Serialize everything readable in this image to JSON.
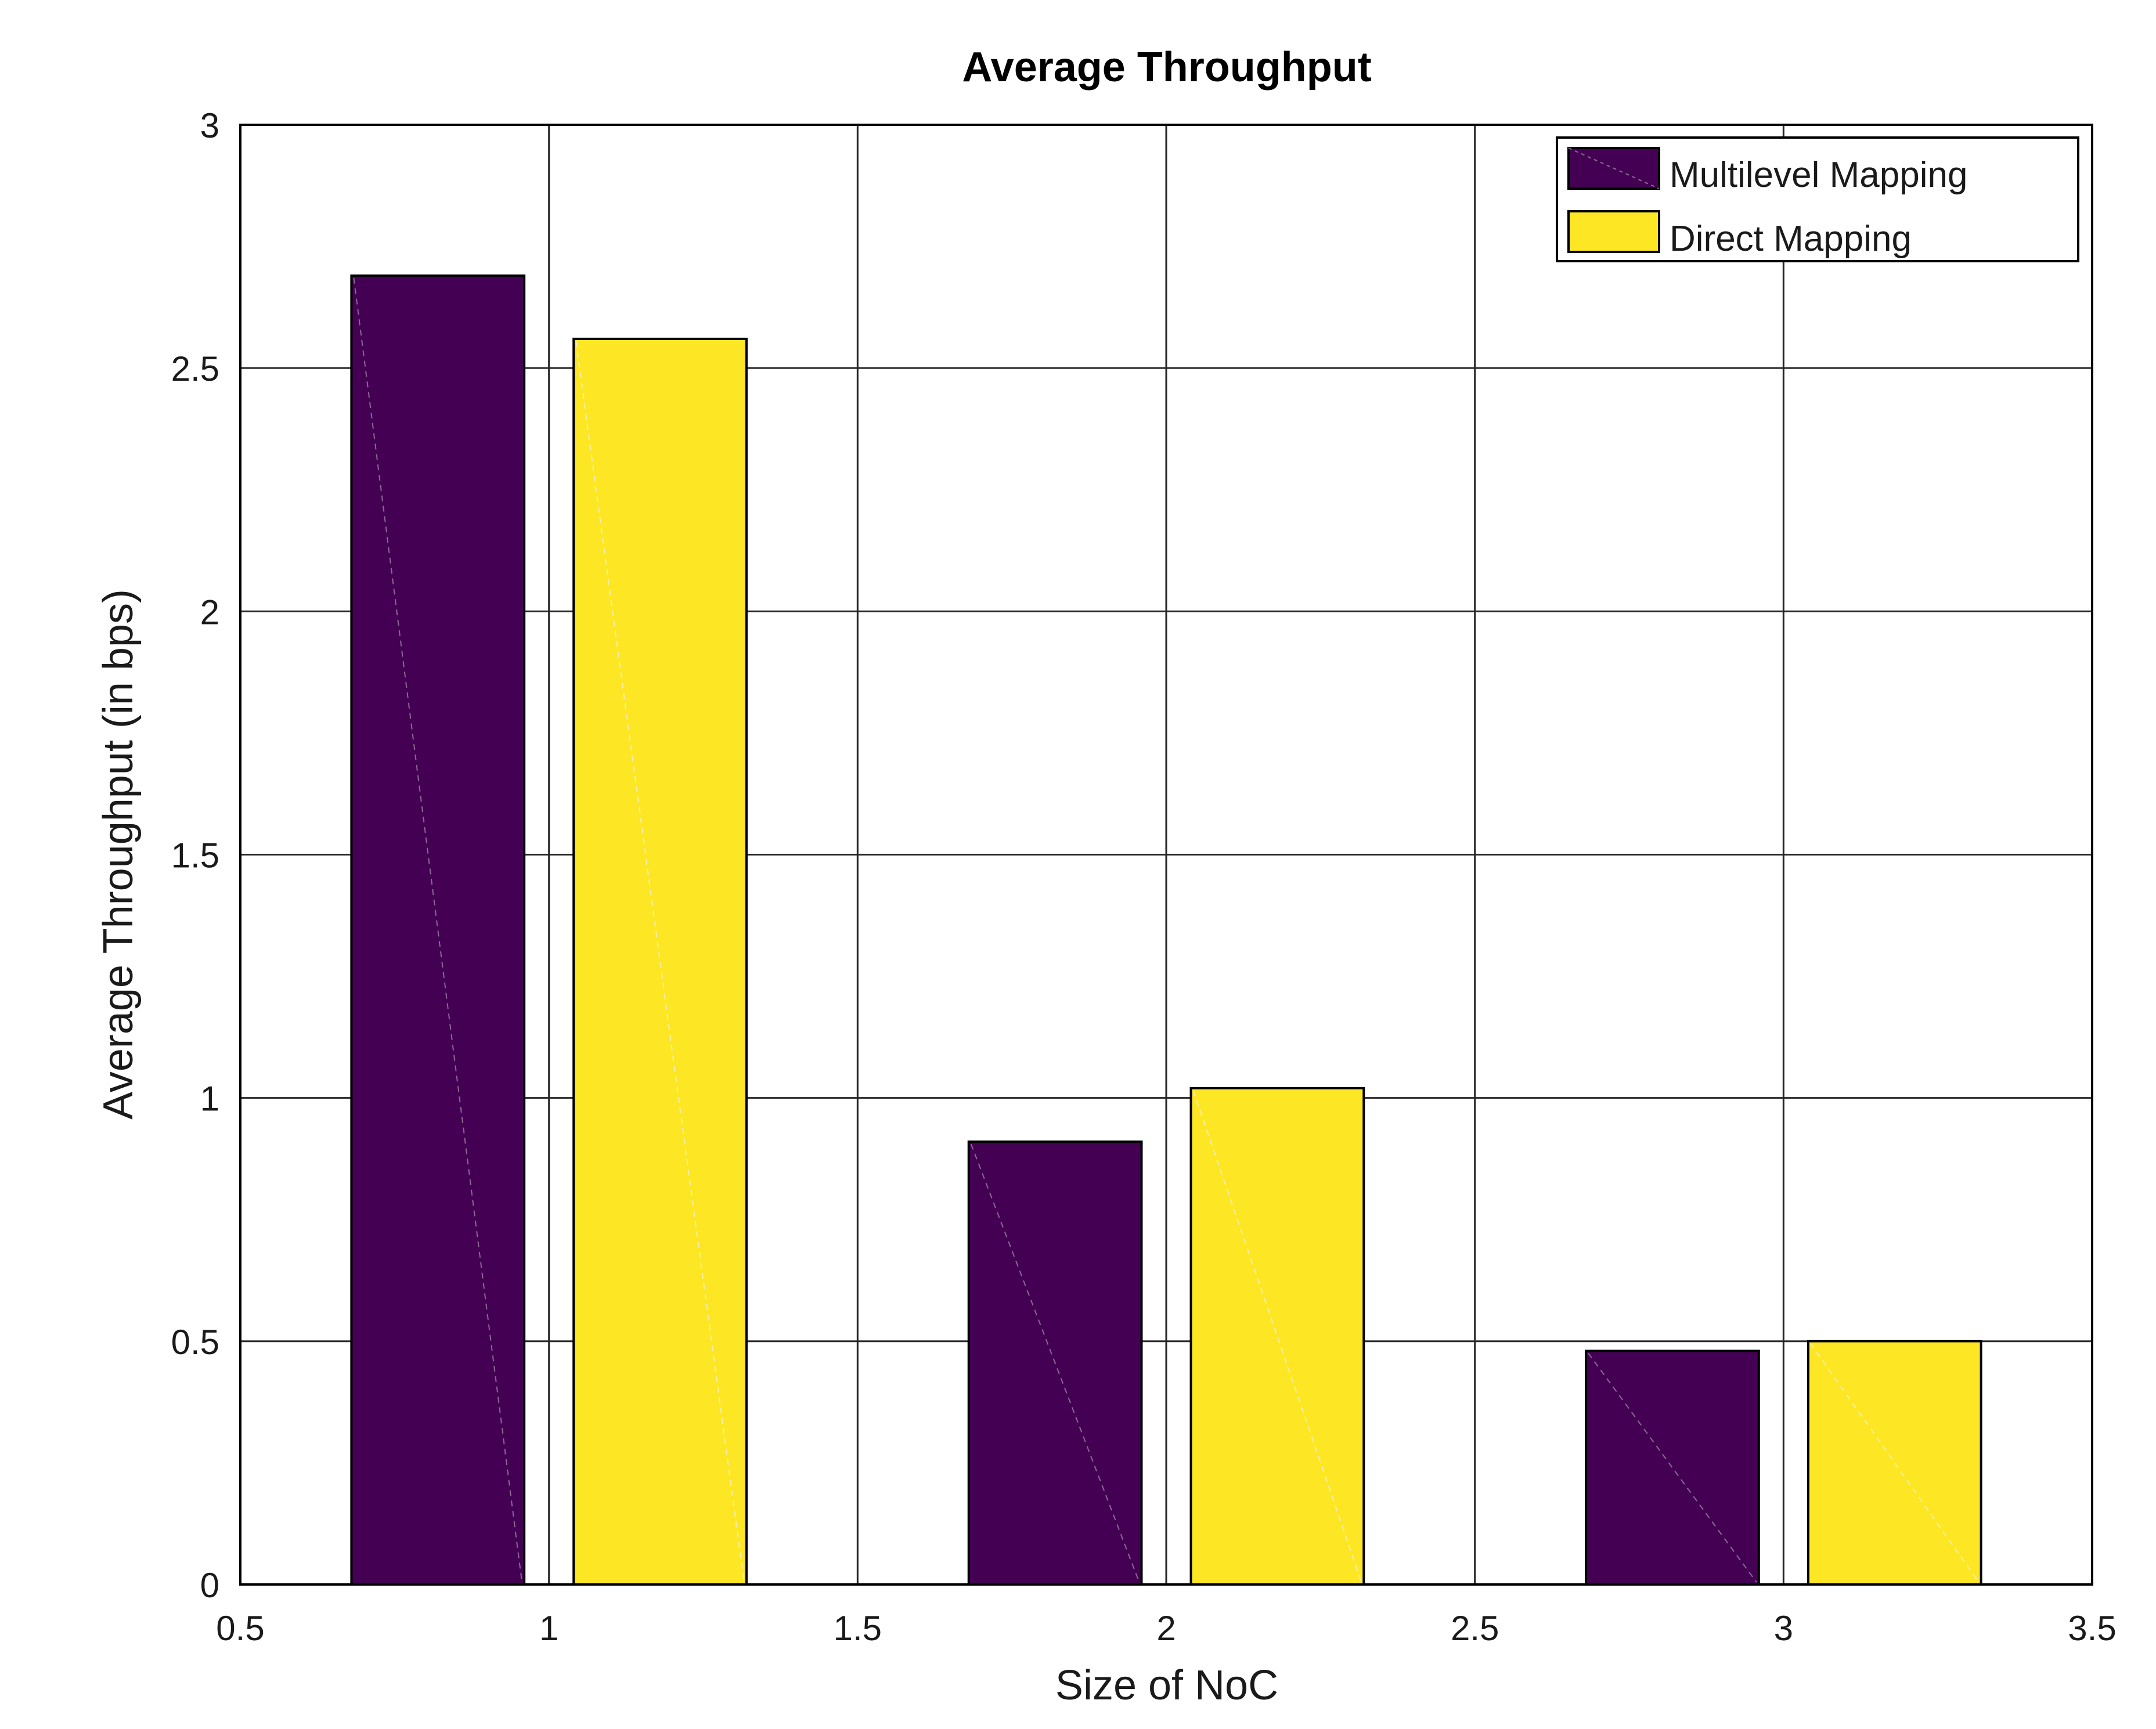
{
  "chart_data": {
    "type": "bar",
    "title": "Average Throughput",
    "xlabel": "Size of NoC",
    "ylabel": "Average Throughput  (in bps)",
    "xlim": [
      0.5,
      3.5
    ],
    "ylim": [
      0,
      3
    ],
    "xticks": [
      0.5,
      1,
      1.5,
      2,
      2.5,
      3,
      3.5
    ],
    "xtick_labels": [
      "0.5",
      "1",
      "1.5",
      "2",
      "2.5",
      "3",
      "3.5"
    ],
    "yticks": [
      0,
      0.5,
      1,
      1.5,
      2,
      2.5,
      3
    ],
    "ytick_labels": [
      "0",
      "0.5",
      "1",
      "1.5",
      "2",
      "2.5",
      "3"
    ],
    "grid": true,
    "legend_position": "top-right",
    "categories": [
      1,
      2,
      3
    ],
    "bar_width": 0.28,
    "series": [
      {
        "name": "Multilevel Mapping",
        "color": "#440154",
        "x": [
          0.82,
          1.82,
          2.82
        ],
        "values": [
          2.69,
          0.91,
          0.48
        ]
      },
      {
        "name": "Direct Mapping",
        "color": "#fde725",
        "x": [
          1.18,
          2.18,
          3.18
        ],
        "values": [
          2.56,
          1.02,
          0.5
        ]
      }
    ]
  }
}
